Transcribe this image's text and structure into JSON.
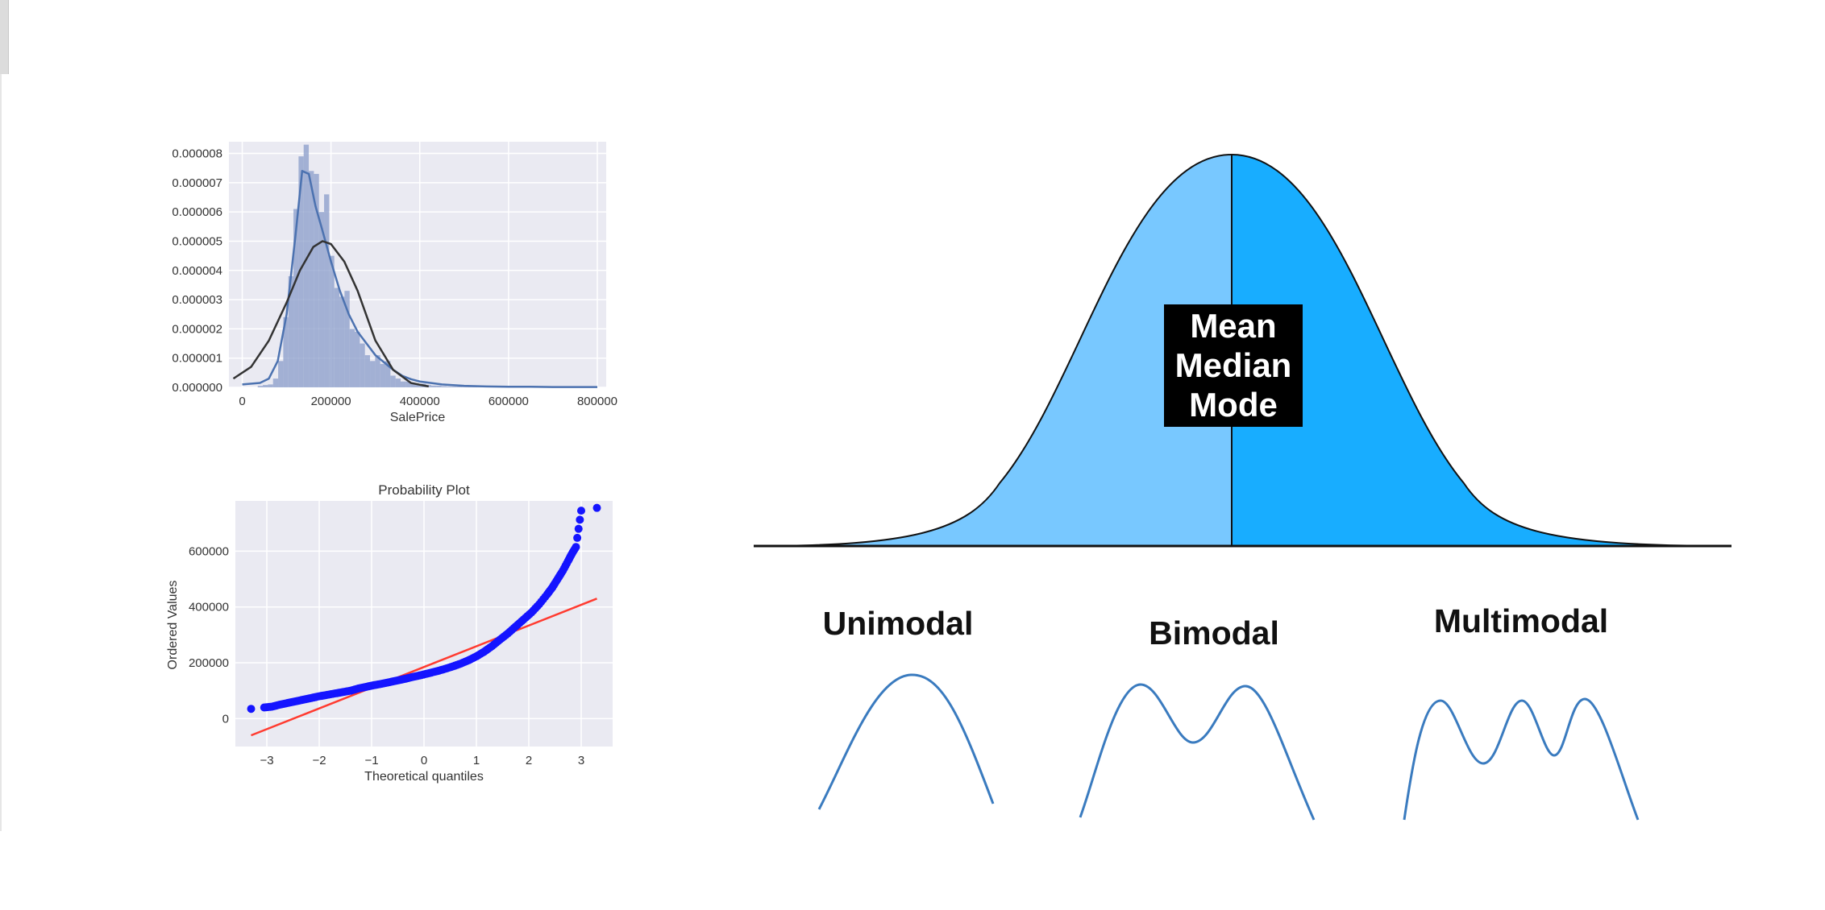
{
  "colors": {
    "panel_bg": "#eaeaf2",
    "hist_fill": "#8a9cc9",
    "kde_line": "#4c72b0",
    "norm_line": "#333333",
    "qq_points": "#1414ff",
    "qq_line": "#ff3b30",
    "bell_left": "#78c8ff",
    "bell_right": "#18adff",
    "mode_curve": "#3a7bbf",
    "center_box": "#000000"
  },
  "chart_data": [
    {
      "type": "histogram",
      "xlabel": "SalePrice",
      "xlim": [
        -30000,
        820000
      ],
      "ylim": [
        0,
        8.4e-06
      ],
      "xticks": [
        "0",
        "200000",
        "400000",
        "600000",
        "800000"
      ],
      "yticks": [
        "0.000000",
        "0.000001",
        "0.000002",
        "0.000003",
        "0.000004",
        "0.000005",
        "0.000006",
        "0.000007",
        "0.000008"
      ],
      "bin_width": 11500,
      "bins": [
        [
          34900,
          5e-08
        ],
        [
          46400,
          8e-08
        ],
        [
          57900,
          1e-07
        ],
        [
          69400,
          3e-07
        ],
        [
          80900,
          9e-07
        ],
        [
          92400,
          2.4e-06
        ],
        [
          103900,
          3.8e-06
        ],
        [
          115400,
          6.1e-06
        ],
        [
          126900,
          7.9e-06
        ],
        [
          138400,
          8.3e-06
        ],
        [
          149900,
          7.4e-06
        ],
        [
          161400,
          7.3e-06
        ],
        [
          172900,
          6e-06
        ],
        [
          184400,
          6.6e-06
        ],
        [
          195900,
          4.5e-06
        ],
        [
          207400,
          3.4e-06
        ],
        [
          218900,
          3.1e-06
        ],
        [
          230400,
          3.3e-06
        ],
        [
          241900,
          2e-06
        ],
        [
          253400,
          1.9e-06
        ],
        [
          264900,
          1.5e-06
        ],
        [
          276400,
          1.1e-06
        ],
        [
          287900,
          9e-07
        ],
        [
          299400,
          1.1e-06
        ],
        [
          310900,
          8e-07
        ],
        [
          322400,
          9e-07
        ],
        [
          333900,
          4e-07
        ],
        [
          345400,
          3e-07
        ],
        [
          356900,
          2e-07
        ],
        [
          368400,
          2e-07
        ],
        [
          379900,
          1.5e-07
        ],
        [
          391400,
          1e-07
        ],
        [
          402900,
          1.2e-07
        ],
        [
          414400,
          8e-08
        ],
        [
          425900,
          6e-08
        ],
        [
          437400,
          6e-08
        ],
        [
          448900,
          4e-08
        ],
        [
          460400,
          3e-08
        ],
        [
          471900,
          3e-08
        ],
        [
          483400,
          3e-08
        ],
        [
          494900,
          2e-08
        ],
        [
          506400,
          2e-08
        ],
        [
          517900,
          2e-08
        ],
        [
          529400,
          1e-08
        ],
        [
          540900,
          2e-08
        ],
        [
          552400,
          2e-08
        ],
        [
          575400,
          1e-08
        ],
        [
          610000,
          1e-08
        ],
        [
          621500,
          1e-08
        ],
        [
          736500,
          1e-08
        ],
        [
          748000,
          1e-08
        ]
      ],
      "series": [
        {
          "name": "kde",
          "x": [
            0,
            40000,
            60000,
            80000,
            100000,
            120000,
            135000,
            150000,
            165000,
            180000,
            200000,
            220000,
            240000,
            260000,
            280000,
            300000,
            320000,
            340000,
            360000,
            380000,
            400000,
            450000,
            500000,
            550000,
            600000,
            650000,
            700000,
            750000,
            800000
          ],
          "y": [
            1e-07,
            1.5e-07,
            3e-07,
            9e-07,
            2.5e-06,
            5.2e-06,
            7.4e-06,
            7.3e-06,
            6.2e-06,
            5.4e-06,
            4.3e-06,
            3.3e-06,
            2.5e-06,
            1.9e-06,
            1.5e-06,
            1.1e-06,
            8.5e-07,
            6e-07,
            4e-07,
            2.8e-07,
            2e-07,
            1e-07,
            5e-08,
            3e-08,
            2e-08,
            2e-08,
            1e-08,
            1e-08,
            1e-08
          ]
        },
        {
          "name": "norm",
          "x": [
            -20000,
            20000,
            60000,
            100000,
            130000,
            160000,
            180900,
            200000,
            230000,
            260000,
            300000,
            340000,
            380000,
            420000
          ],
          "y": [
            3e-07,
            7e-07,
            1.6e-06,
            2.9e-06,
            4e-06,
            4.8e-06,
            5e-06,
            4.9e-06,
            4.3e-06,
            3.3e-06,
            1.6e-06,
            6e-07,
            1.5e-07,
            3e-08
          ]
        }
      ]
    },
    {
      "type": "scatter",
      "title": "Probability Plot",
      "xlabel": "Theoretical quantiles",
      "ylabel": "Ordered Values",
      "xlim": [
        -3.6,
        3.6
      ],
      "ylim": [
        -100000,
        780000
      ],
      "xticks": [
        "−3",
        "−2",
        "−1",
        "0",
        "1",
        "2",
        "3"
      ],
      "yticks": [
        "0",
        "200000",
        "400000",
        "600000"
      ],
      "reference_line": {
        "x": [
          -3.3,
          3.3
        ],
        "y": [
          -60000,
          430000
        ]
      },
      "series": [
        {
          "name": "ordered",
          "x": [
            -3.3,
            -3.05,
            -2.9,
            -2.75,
            -2.6,
            -2.45,
            -2.3,
            -2.15,
            -2.0,
            -1.85,
            -1.7,
            -1.55,
            -1.4,
            -1.25,
            -1.1,
            -0.95,
            -0.8,
            -0.65,
            -0.5,
            -0.35,
            -0.2,
            -0.05,
            0.1,
            0.25,
            0.4,
            0.55,
            0.7,
            0.85,
            1.0,
            1.15,
            1.3,
            1.45,
            1.6,
            1.75,
            1.9,
            2.05,
            2.2,
            2.35,
            2.45,
            2.55,
            2.65,
            2.75,
            2.82,
            2.9,
            3.0,
            3.3
          ],
          "y": [
            35000,
            40000,
            43000,
            50000,
            56000,
            62000,
            68000,
            74000,
            80000,
            85000,
            90000,
            95000,
            100000,
            108000,
            114000,
            120000,
            125000,
            131000,
            137000,
            143000,
            150000,
            156000,
            163000,
            170000,
            178000,
            187000,
            197000,
            209000,
            223000,
            240000,
            260000,
            283000,
            305000,
            330000,
            355000,
            380000,
            410000,
            445000,
            470000,
            500000,
            530000,
            565000,
            590000,
            615000,
            745000,
            755000
          ]
        }
      ]
    },
    {
      "type": "area",
      "labels": [
        "Mean",
        "Median",
        "Mode"
      ]
    },
    {
      "type": "line",
      "titles": [
        "Unimodal",
        "Bimodal",
        "Multimodal"
      ]
    }
  ]
}
